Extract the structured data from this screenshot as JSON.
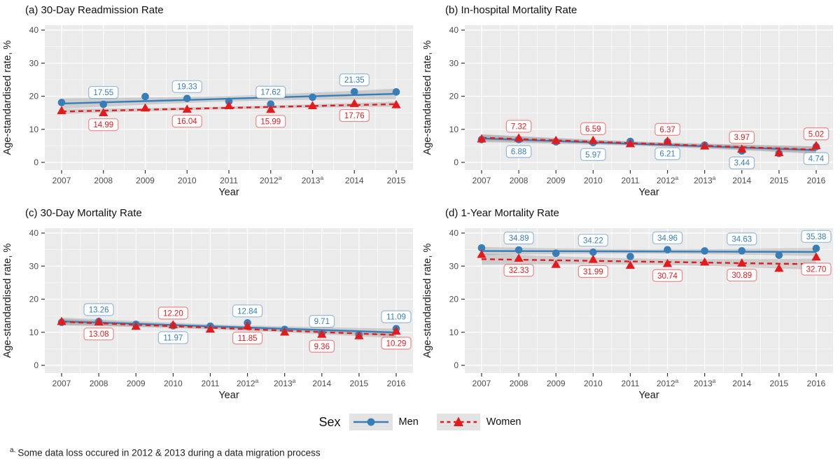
{
  "figure": {
    "legend": {
      "title": "Sex",
      "men_label": "Men",
      "women_label": "Women"
    },
    "footnote": {
      "marker": "a.",
      "text": "Some data loss occured in 2012 & 2013 during a data migration process"
    },
    "year_superscript": "a"
  },
  "colors": {
    "men": "#377EB8",
    "women": "#E41A1C",
    "panel_bg": "#EBEBEB",
    "grid": "#FFFFFF",
    "band": "rgba(125,125,125,0.28)",
    "axis_text": "#4D4D4D",
    "tick": "#333333",
    "title_text": "#1A1A1A"
  },
  "chart_data": [
    {
      "id": "a",
      "type": "line",
      "title": "(a) 30-Day Readmission Rate",
      "xlabel": "Year",
      "ylabel": "Age-standardised rate, %",
      "ylim": [
        0,
        40
      ],
      "y_ticks": [
        0,
        10,
        20,
        30,
        40
      ],
      "x": [
        2007,
        2008,
        2009,
        2010,
        2011,
        2012,
        2013,
        2014,
        2015
      ],
      "superscript_years": [
        2012,
        2013
      ],
      "trend": "linear",
      "ci_band": true,
      "series": [
        {
          "name": "Men",
          "marker": "circle",
          "line": "solid",
          "values": [
            18.1,
            17.55,
            19.9,
            19.33,
            18.45,
            17.62,
            19.7,
            21.35,
            21.3
          ]
        },
        {
          "name": "Women",
          "marker": "triangle",
          "line": "dashed",
          "values": [
            15.6,
            14.99,
            16.4,
            16.04,
            17.1,
            15.99,
            17.1,
            17.76,
            17.4
          ]
        }
      ],
      "point_labels": [
        {
          "series": "Men",
          "year": 2008,
          "text": "17.55",
          "side": "above"
        },
        {
          "series": "Men",
          "year": 2010,
          "text": "19.33",
          "side": "above"
        },
        {
          "series": "Men",
          "year": 2012,
          "text": "17.62",
          "side": "above"
        },
        {
          "series": "Men",
          "year": 2014,
          "text": "21.35",
          "side": "above"
        },
        {
          "series": "Women",
          "year": 2008,
          "text": "14.99",
          "side": "below"
        },
        {
          "series": "Women",
          "year": 2010,
          "text": "16.04",
          "side": "below"
        },
        {
          "series": "Women",
          "year": 2012,
          "text": "15.99",
          "side": "below"
        },
        {
          "series": "Women",
          "year": 2014,
          "text": "17.76",
          "side": "below"
        }
      ]
    },
    {
      "id": "b",
      "type": "line",
      "title": "(b) In-hospital Mortality Rate",
      "xlabel": "Year",
      "ylabel": "Age-standardised rate, %",
      "ylim": [
        0,
        40
      ],
      "y_ticks": [
        0,
        10,
        20,
        30,
        40
      ],
      "x": [
        2007,
        2008,
        2009,
        2010,
        2011,
        2012,
        2013,
        2014,
        2015,
        2016
      ],
      "superscript_years": [
        2012,
        2013
      ],
      "trend": "linear",
      "ci_band": true,
      "series": [
        {
          "name": "Men",
          "marker": "circle",
          "line": "solid",
          "values": [
            6.9,
            6.88,
            6.2,
            5.97,
            6.35,
            6.21,
            5.2,
            3.44,
            2.7,
            4.74
          ]
        },
        {
          "name": "Women",
          "marker": "triangle",
          "line": "dashed",
          "values": [
            7.05,
            7.32,
            6.6,
            6.59,
            5.6,
            6.37,
            4.9,
            3.97,
            2.9,
            5.02
          ]
        }
      ],
      "point_labels": [
        {
          "series": "Women",
          "year": 2008,
          "text": "7.32",
          "side": "above"
        },
        {
          "series": "Women",
          "year": 2010,
          "text": "6.59",
          "side": "above"
        },
        {
          "series": "Women",
          "year": 2012,
          "text": "6.37",
          "side": "above"
        },
        {
          "series": "Women",
          "year": 2014,
          "text": "3.97",
          "side": "above"
        },
        {
          "series": "Women",
          "year": 2016,
          "text": "5.02",
          "side": "above"
        },
        {
          "series": "Men",
          "year": 2008,
          "text": "6.88",
          "side": "below"
        },
        {
          "series": "Men",
          "year": 2010,
          "text": "5.97",
          "side": "below"
        },
        {
          "series": "Men",
          "year": 2012,
          "text": "6.21",
          "side": "below"
        },
        {
          "series": "Men",
          "year": 2014,
          "text": "3.44",
          "side": "below"
        },
        {
          "series": "Men",
          "year": 2016,
          "text": "4.74",
          "side": "below"
        }
      ]
    },
    {
      "id": "c",
      "type": "line",
      "title": "(c) 30-Day Mortality Rate",
      "xlabel": "Year",
      "ylabel": "Age-standardised rate, %",
      "ylim": [
        0,
        40
      ],
      "y_ticks": [
        0,
        10,
        20,
        30,
        40
      ],
      "x": [
        2007,
        2008,
        2009,
        2010,
        2011,
        2012,
        2013,
        2014,
        2015,
        2016
      ],
      "superscript_years": [
        2012,
        2013
      ],
      "trend": "linear",
      "ci_band": true,
      "series": [
        {
          "name": "Men",
          "marker": "circle",
          "line": "solid",
          "values": [
            13.0,
            13.26,
            12.4,
            11.97,
            11.85,
            12.84,
            10.85,
            9.71,
            9.2,
            11.09
          ]
        },
        {
          "name": "Women",
          "marker": "triangle",
          "line": "dashed",
          "values": [
            13.2,
            13.08,
            11.75,
            12.2,
            10.9,
            11.85,
            10.0,
            9.36,
            8.9,
            10.29
          ]
        }
      ],
      "point_labels": [
        {
          "series": "Men",
          "year": 2008,
          "text": "13.26",
          "side": "above"
        },
        {
          "series": "Women",
          "year": 2008,
          "text": "13.08",
          "side": "below"
        },
        {
          "series": "Women",
          "year": 2010,
          "text": "12.20",
          "side": "above"
        },
        {
          "series": "Men",
          "year": 2010,
          "text": "11.97",
          "side": "below"
        },
        {
          "series": "Men",
          "year": 2012,
          "text": "12.84",
          "side": "above"
        },
        {
          "series": "Women",
          "year": 2012,
          "text": "11.85",
          "side": "below"
        },
        {
          "series": "Men",
          "year": 2014,
          "text": "9.71",
          "side": "above"
        },
        {
          "series": "Women",
          "year": 2014,
          "text": "9.36",
          "side": "below"
        },
        {
          "series": "Men",
          "year": 2016,
          "text": "11.09",
          "side": "above"
        },
        {
          "series": "Women",
          "year": 2016,
          "text": "10.29",
          "side": "below"
        }
      ]
    },
    {
      "id": "d",
      "type": "line",
      "title": "(d) 1-Year Mortality Rate",
      "xlabel": "Year",
      "ylabel": "Age-standardised rate, %",
      "ylim": [
        0,
        40
      ],
      "y_ticks": [
        0,
        10,
        20,
        30,
        40
      ],
      "x": [
        2007,
        2008,
        2009,
        2010,
        2011,
        2012,
        2013,
        2014,
        2015,
        2016
      ],
      "superscript_years": [
        2012,
        2013
      ],
      "trend": "linear",
      "ci_band": true,
      "series": [
        {
          "name": "Men",
          "marker": "circle",
          "line": "solid",
          "values": [
            35.5,
            34.89,
            33.9,
            34.22,
            32.9,
            34.96,
            34.6,
            34.63,
            33.3,
            35.38
          ]
        },
        {
          "name": "Women",
          "marker": "triangle",
          "line": "dashed",
          "values": [
            33.5,
            32.33,
            30.5,
            31.99,
            30.2,
            30.74,
            31.2,
            30.89,
            29.3,
            32.7
          ]
        }
      ],
      "point_labels": [
        {
          "series": "Men",
          "year": 2008,
          "text": "34.89",
          "side": "above"
        },
        {
          "series": "Men",
          "year": 2010,
          "text": "34.22",
          "side": "above"
        },
        {
          "series": "Men",
          "year": 2012,
          "text": "34.96",
          "side": "above"
        },
        {
          "series": "Men",
          "year": 2014,
          "text": "34.63",
          "side": "above"
        },
        {
          "series": "Men",
          "year": 2016,
          "text": "35.38",
          "side": "above"
        },
        {
          "series": "Women",
          "year": 2008,
          "text": "32.33",
          "side": "below"
        },
        {
          "series": "Women",
          "year": 2010,
          "text": "31.99",
          "side": "below"
        },
        {
          "series": "Women",
          "year": 2012,
          "text": "30.74",
          "side": "below"
        },
        {
          "series": "Women",
          "year": 2014,
          "text": "30.89",
          "side": "below"
        },
        {
          "series": "Women",
          "year": 2016,
          "text": "32.70",
          "side": "below"
        }
      ]
    }
  ]
}
